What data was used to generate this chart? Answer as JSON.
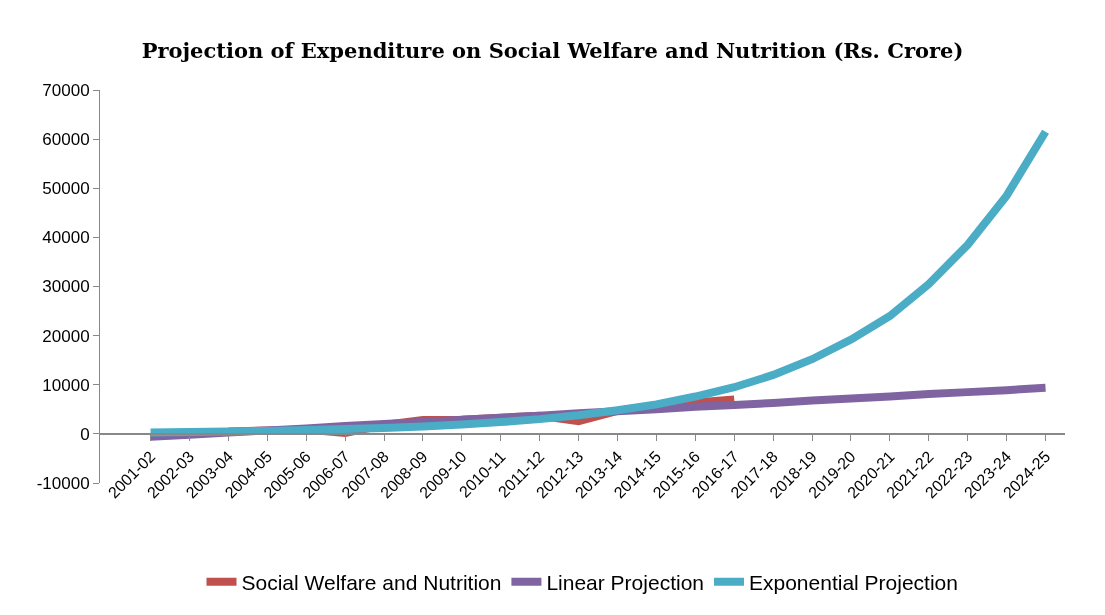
{
  "chart_data": {
    "type": "line",
    "title": "Projection of Expenditure on Social Welfare and Nutrition (Rs. Crore)",
    "categories": [
      "2001-02",
      "2002-03",
      "2003-04",
      "2004-05",
      "2005-06",
      "2006-07",
      "2007-08",
      "2008-09",
      "2009-10",
      "2010-11",
      "2011-12",
      "2012-13",
      "2013-14",
      "2014-15",
      "2015-16",
      "2016-17",
      "2017-18",
      "2018-19",
      "2019-20",
      "2020-21",
      "2021-22",
      "2022-23",
      "2023-24",
      "2024-25"
    ],
    "series": [
      {
        "name": "Social Welfare and Nutrition",
        "color": "#c0504d",
        "values": [
          null,
          null,
          500,
          700,
          900,
          200,
          1800,
          2800,
          2900,
          3300,
          3700,
          2600,
          4700,
          5800,
          6400,
          7000,
          null,
          null,
          null,
          null,
          null,
          null,
          null,
          null
        ]
      },
      {
        "name": "Linear Projection",
        "color": "#8064a2",
        "values": [
          -600,
          -200,
          300,
          700,
          1100,
          1600,
          2000,
          2400,
          2900,
          3300,
          3700,
          4200,
          4600,
          5000,
          5500,
          5900,
          6300,
          6800,
          7200,
          7600,
          8100,
          8500,
          8900,
          9400
        ]
      },
      {
        "name": "Exponential Projection",
        "color": "#4bacc6",
        "values": [
          300,
          400,
          500,
          600,
          800,
          1000,
          1200,
          1500,
          1900,
          2400,
          3000,
          3800,
          4800,
          6000,
          7600,
          9500,
          12000,
          15200,
          19200,
          24000,
          30500,
          38500,
          48500,
          61500
        ]
      }
    ],
    "ylim": [
      -10000,
      70000
    ],
    "yticks": [
      -10000,
      0,
      10000,
      20000,
      30000,
      40000,
      50000,
      60000,
      70000
    ],
    "grid": false,
    "legend": "bottom",
    "marker": "none",
    "line_style": "solid"
  }
}
